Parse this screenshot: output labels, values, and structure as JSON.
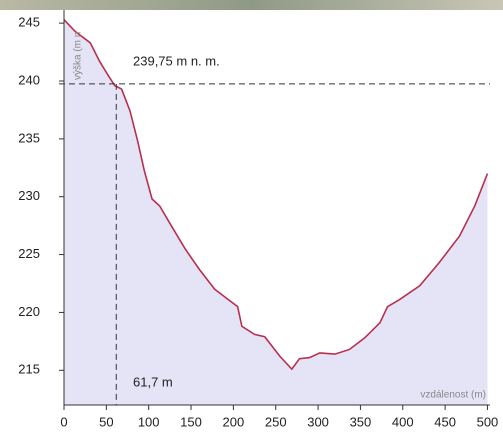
{
  "chart_data": {
    "type": "area",
    "y_label": "výška (m n",
    "x_label": "vzdálenost (m)",
    "x": [
      0,
      13,
      31,
      42,
      52,
      60,
      68,
      78,
      87,
      95,
      104,
      113,
      125,
      143,
      160,
      178,
      196,
      205,
      210,
      225,
      237,
      255,
      269,
      278,
      290,
      302,
      320,
      337,
      355,
      373,
      382,
      396,
      420,
      443,
      467,
      485,
      500
    ],
    "series": [
      {
        "color": "#b8304c",
        "fill": "#e4e4f6",
        "values": [
          245.3,
          244.3,
          243.3,
          241.7,
          240.5,
          239.6,
          239.3,
          237.4,
          234.8,
          232.2,
          229.8,
          229.2,
          227.7,
          225.5,
          223.7,
          222,
          221,
          220.5,
          218.8,
          218.1,
          217.9,
          216.2,
          215.1,
          216,
          216.1,
          216.5,
          216.4,
          216.8,
          217.8,
          219.1,
          220.5,
          221.1,
          222.3,
          224.3,
          226.6,
          229.2,
          232
        ]
      }
    ],
    "marker": {
      "x": 61.7,
      "y": 239.75,
      "x_label": "61,7 m",
      "y_label": "239,75 m n. m."
    },
    "xlim": [
      0,
      503
    ],
    "xticks": [
      0,
      50,
      100,
      150,
      200,
      250,
      300,
      350,
      400,
      450,
      500
    ],
    "ylim": [
      212,
      247
    ],
    "yticks": [
      215,
      220,
      225,
      230,
      235,
      240,
      245
    ]
  }
}
